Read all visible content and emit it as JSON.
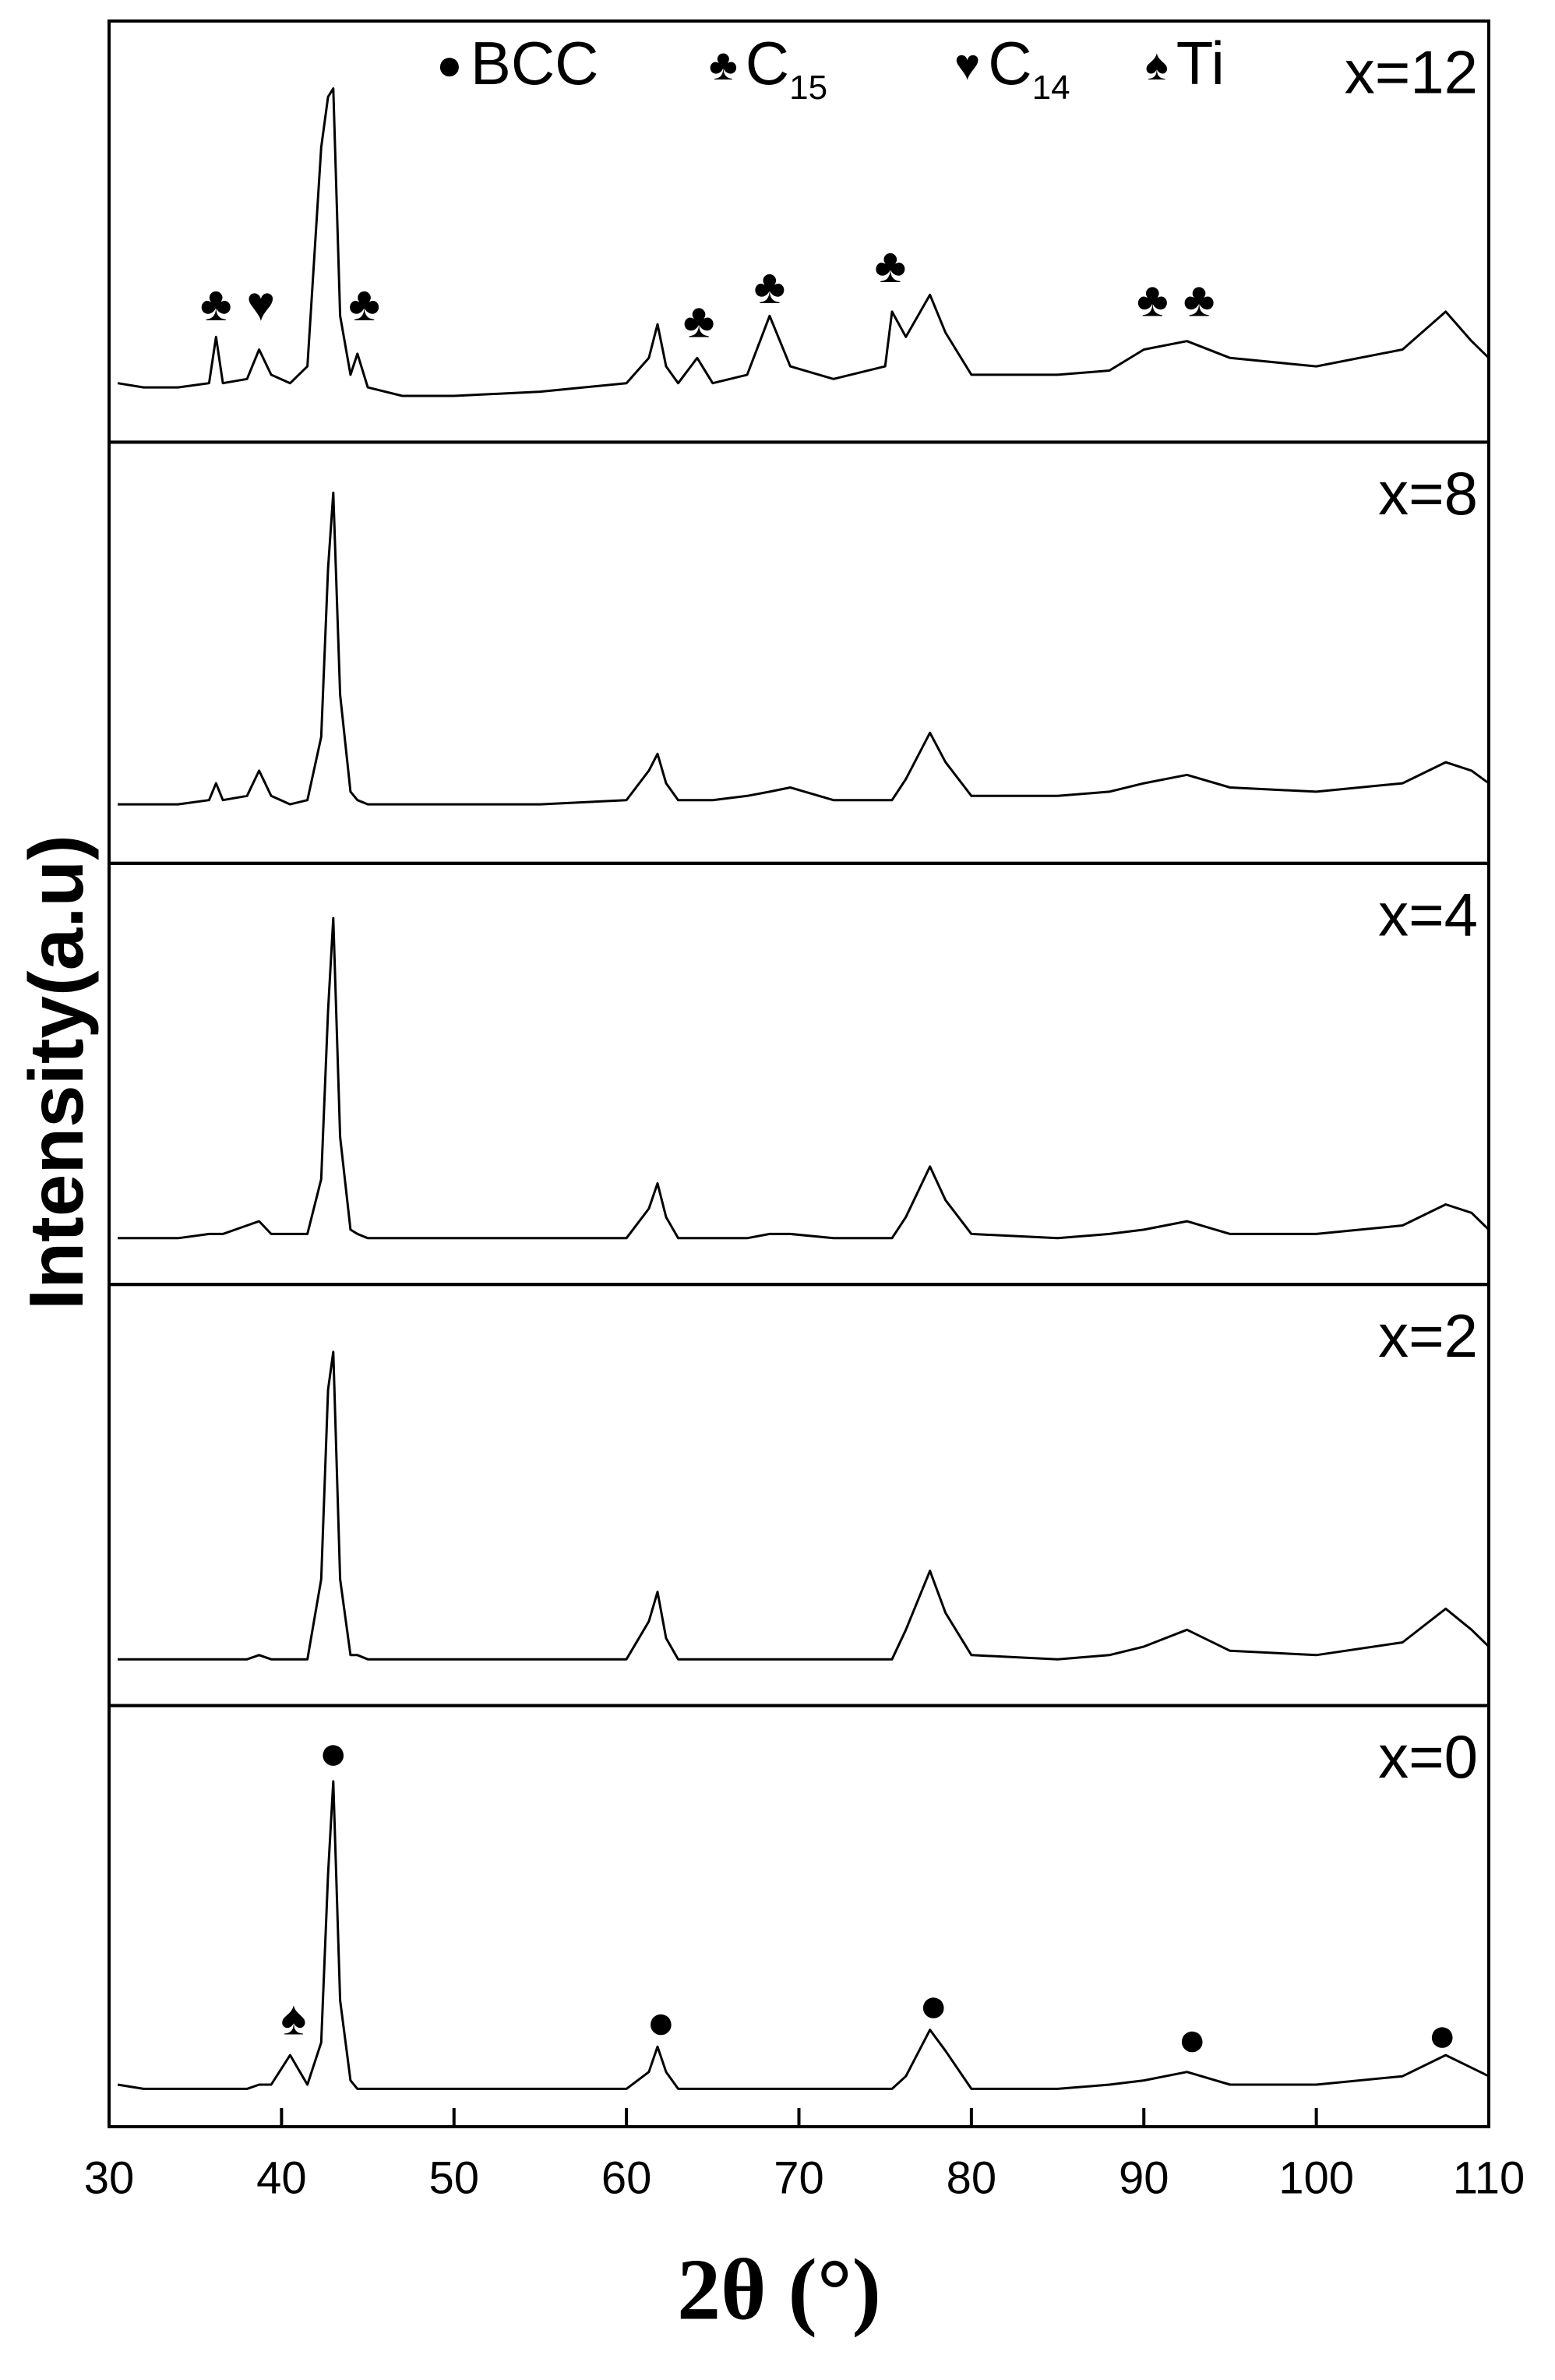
{
  "chart_data": {
    "type": "line",
    "xlabel": "2θ (°)",
    "ylabel": "Intensity(a.u)",
    "xlim": [
      30,
      110
    ],
    "xticks": [
      30,
      40,
      50,
      60,
      70,
      80,
      90,
      100,
      110
    ],
    "ylim": [
      0,
      100
    ],
    "legend": [
      {
        "symbol": "●",
        "label": "BCC"
      },
      {
        "symbol": "♣",
        "label": "C",
        "sub": "15"
      },
      {
        "symbol": "♥",
        "label": "C",
        "sub": "14"
      },
      {
        "symbol": "♠",
        "label": "Ti"
      }
    ],
    "x": [
      30.5,
      32,
      34,
      35.8,
      36.2,
      36.6,
      38,
      38.7,
      39.4,
      40.5,
      41.5,
      42.3,
      42.7,
      43.0,
      43.4,
      44,
      44.4,
      45,
      47,
      50,
      55,
      60,
      61.3,
      61.8,
      62.3,
      63,
      64.1,
      65,
      67,
      68.3,
      69.5,
      72,
      75,
      75.4,
      76.2,
      77.6,
      78.5,
      80,
      85,
      88,
      90,
      92.5,
      95,
      100,
      105,
      107.5,
      109,
      110
    ],
    "series": [
      {
        "name": "x=12",
        "color": "#000000",
        "values": [
          14,
          13,
          13,
          14,
          25,
          14,
          15,
          22,
          16,
          14,
          18,
          70,
          82,
          84,
          30,
          16,
          21,
          13,
          11,
          11,
          12,
          14,
          20,
          28,
          18,
          14,
          20,
          14,
          16,
          30,
          18,
          15,
          18,
          31,
          25,
          35,
          26,
          16,
          16,
          17,
          22,
          24,
          20,
          18,
          22,
          31,
          24,
          20
        ],
        "markers": [
          {
            "symbol": "♣",
            "x": 36.2,
            "y": 32
          },
          {
            "symbol": "♥",
            "x": 38.8,
            "y": 32
          },
          {
            "symbol": "♣",
            "x": 44.8,
            "y": 32
          },
          {
            "symbol": "♣",
            "x": 64.2,
            "y": 28
          },
          {
            "symbol": "♣",
            "x": 68.3,
            "y": 36
          },
          {
            "symbol": "♣",
            "x": 75.3,
            "y": 41
          },
          {
            "symbol": "♣",
            "x": 90.5,
            "y": 33
          },
          {
            "symbol": "♣",
            "x": 93.2,
            "y": 33
          }
        ]
      },
      {
        "name": "x=8",
        "color": "#000000",
        "values": [
          14,
          14,
          14,
          15,
          19,
          15,
          16,
          22,
          16,
          14,
          15,
          30,
          70,
          88,
          40,
          17,
          15,
          14,
          14,
          14,
          14,
          15,
          22,
          26,
          19,
          15,
          15,
          15,
          16,
          17,
          18,
          15,
          15,
          15,
          20,
          31,
          24,
          16,
          16,
          17,
          19,
          21,
          18,
          17,
          19,
          24,
          22,
          19
        ]
      },
      {
        "name": "x=4",
        "color": "#000000",
        "values": [
          11,
          11,
          11,
          12,
          12,
          12,
          14,
          15,
          12,
          12,
          12,
          25,
          65,
          87,
          35,
          13,
          12,
          11,
          11,
          11,
          11,
          11,
          18,
          24,
          16,
          11,
          11,
          11,
          11,
          12,
          12,
          11,
          11,
          11,
          16,
          28,
          20,
          12,
          11,
          12,
          13,
          15,
          12,
          12,
          14,
          19,
          17,
          13
        ]
      },
      {
        "name": "x=2",
        "color": "#000000",
        "values": [
          11,
          11,
          11,
          11,
          11,
          11,
          11,
          12,
          11,
          11,
          11,
          30,
          75,
          84,
          30,
          12,
          12,
          11,
          11,
          11,
          11,
          11,
          20,
          27,
          16,
          11,
          11,
          11,
          11,
          11,
          11,
          11,
          11,
          11,
          18,
          32,
          22,
          12,
          11,
          12,
          14,
          18,
          13,
          12,
          15,
          23,
          18,
          14
        ]
      },
      {
        "name": "x=0",
        "color": "#000000",
        "values": [
          10,
          9,
          9,
          9,
          9,
          9,
          9,
          10,
          10,
          17,
          10,
          20,
          60,
          82,
          30,
          11,
          9,
          9,
          9,
          9,
          9,
          9,
          13,
          19,
          13,
          9,
          9,
          9,
          9,
          9,
          9,
          9,
          9,
          9,
          12,
          23,
          18,
          9,
          9,
          10,
          11,
          13,
          10,
          10,
          12,
          17,
          14,
          12
        ],
        "markers": [
          {
            "symbol": "♠",
            "x": 40.7,
            "y": 25
          },
          {
            "symbol": "●",
            "x": 43.0,
            "y": 88
          },
          {
            "symbol": "●",
            "x": 62.0,
            "y": 24
          },
          {
            "symbol": "●",
            "x": 77.8,
            "y": 28
          },
          {
            "symbol": "●",
            "x": 92.8,
            "y": 20
          },
          {
            "symbol": "●",
            "x": 107.3,
            "y": 21
          }
        ]
      }
    ]
  }
}
